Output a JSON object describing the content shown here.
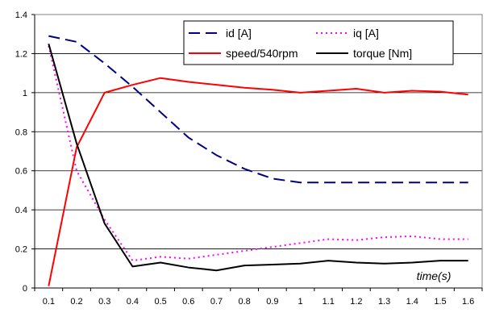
{
  "chart_data": {
    "type": "line",
    "title": "",
    "xlabel": "time(s)",
    "ylabel": "",
    "x": [
      0.1,
      0.2,
      0.3,
      0.4,
      0.5,
      0.6,
      0.7,
      0.8,
      0.9,
      1,
      1.1,
      1.2,
      1.3,
      1.4,
      1.5,
      1.6
    ],
    "x_tick_labels": [
      "0.1",
      "0.2",
      "0.3",
      "0.4",
      "0.5",
      "0.6",
      "0.7",
      "0.8",
      "0.9",
      "1",
      "1.1",
      "1.2",
      "1.3",
      "1.4",
      "1.5",
      "1.6"
    ],
    "ylim": [
      0,
      1.4
    ],
    "y_ticks": [
      0,
      0.2,
      0.4,
      0.6,
      0.8,
      1,
      1.2,
      1.4
    ],
    "y_tick_labels": [
      "0",
      "0.2",
      "0.4",
      "0.6",
      "0.8",
      "1",
      "1.2",
      "1.4"
    ],
    "grid": "horizontal",
    "legend_position": "top-right",
    "series": [
      {
        "name": "id [A]",
        "color": "#000080",
        "dash": "long-dash",
        "values": [
          1.29,
          1.26,
          1.15,
          1.03,
          0.9,
          0.77,
          0.68,
          0.61,
          0.56,
          0.54,
          0.54,
          0.54,
          0.54,
          0.54,
          0.54,
          0.54
        ]
      },
      {
        "name": "iq [A]",
        "color": "#ff00ff",
        "dash": "dotted",
        "values": [
          1.24,
          0.6,
          0.35,
          0.14,
          0.16,
          0.15,
          0.17,
          0.19,
          0.21,
          0.23,
          0.25,
          0.245,
          0.26,
          0.265,
          0.25,
          0.25
        ]
      },
      {
        "name": "speed/540rpm",
        "color": "#ff0000",
        "dash": "solid",
        "values": [
          0.01,
          0.72,
          1.0,
          1.04,
          1.075,
          1.055,
          1.04,
          1.025,
          1.015,
          1.0,
          1.01,
          1.02,
          1.0,
          1.01,
          1.005,
          0.99
        ]
      },
      {
        "name": "torque [Nm]",
        "color": "#000000",
        "dash": "solid",
        "values": [
          1.25,
          0.74,
          0.33,
          0.11,
          0.13,
          0.105,
          0.09,
          0.115,
          0.12,
          0.125,
          0.14,
          0.13,
          0.125,
          0.13,
          0.14,
          0.14
        ]
      }
    ]
  }
}
